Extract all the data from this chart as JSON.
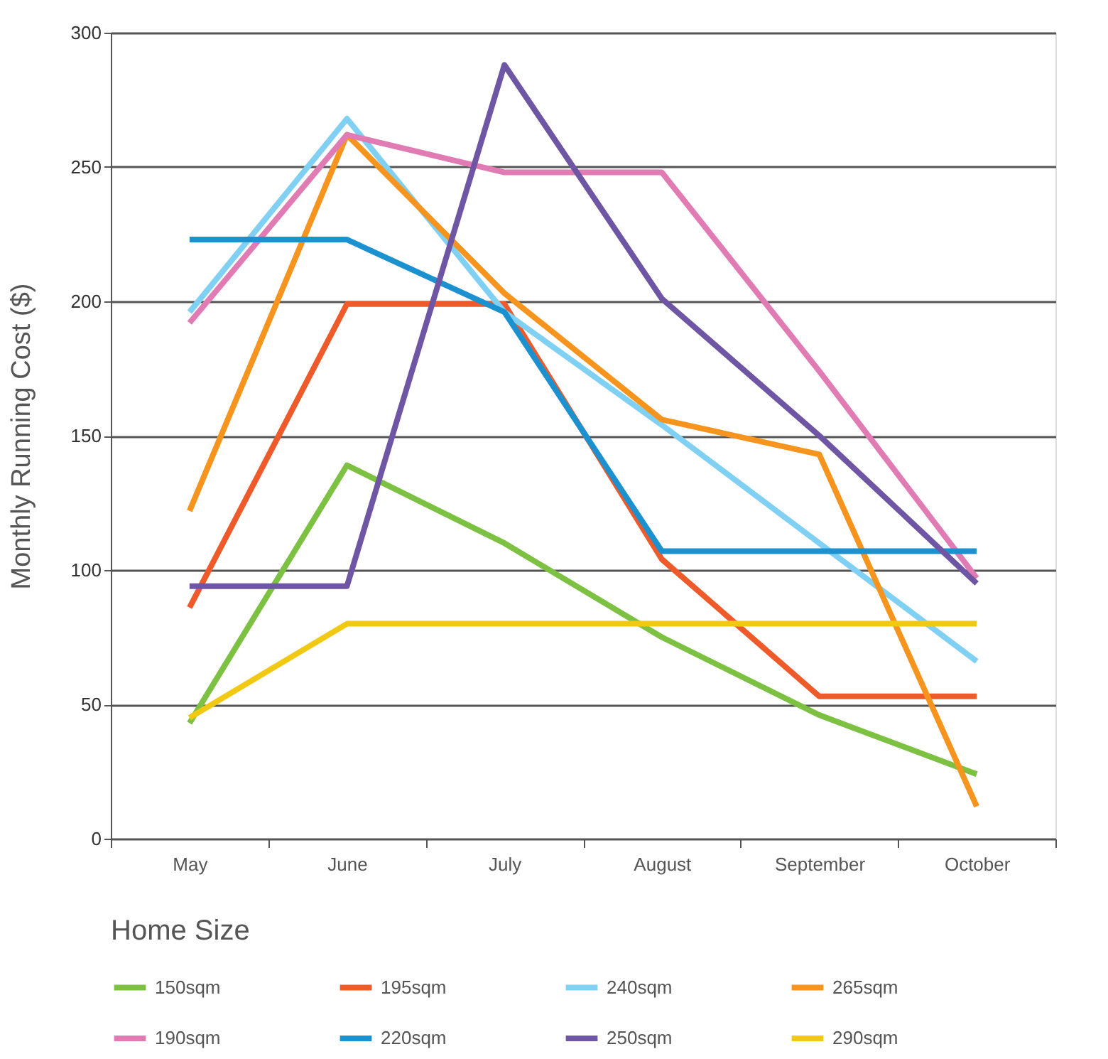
{
  "chart_data": {
    "type": "line",
    "ylabel": "Monthly Running Cost ($)",
    "legend_title": "Home Size",
    "legend": "bottom",
    "grid": "y",
    "line_style": "solid",
    "marker": "none",
    "categories": [
      "May",
      "June",
      "July",
      "August",
      "September",
      "October"
    ],
    "ylim": [
      0,
      300
    ],
    "yticks": [
      0,
      50,
      100,
      150,
      200,
      250,
      300
    ],
    "series": [
      {
        "name": "150sqm",
        "color": "#7dc142",
        "values": [
          43,
          139,
          110,
          75,
          46,
          24
        ]
      },
      {
        "name": "195sqm",
        "color": "#ef5a2b",
        "values": [
          86,
          199,
          199,
          104,
          53,
          53
        ]
      },
      {
        "name": "240sqm",
        "color": "#80d0f4",
        "values": [
          196,
          268,
          196,
          154,
          110,
          66
        ]
      },
      {
        "name": "265sqm",
        "color": "#f7941d",
        "values": [
          122,
          262,
          203,
          156,
          143,
          12
        ]
      },
      {
        "name": "190sqm",
        "color": "#e17bb4",
        "values": [
          192,
          262,
          248,
          248,
          174,
          97
        ]
      },
      {
        "name": "220sqm",
        "color": "#1b92cf",
        "values": [
          223,
          223,
          196,
          107,
          107,
          107
        ]
      },
      {
        "name": "250sqm",
        "color": "#6e56a5",
        "values": [
          94,
          94,
          288,
          201,
          150,
          95
        ]
      },
      {
        "name": "290sqm",
        "color": "#f1c912",
        "values": [
          45,
          80,
          80,
          80,
          80,
          80
        ]
      }
    ]
  }
}
